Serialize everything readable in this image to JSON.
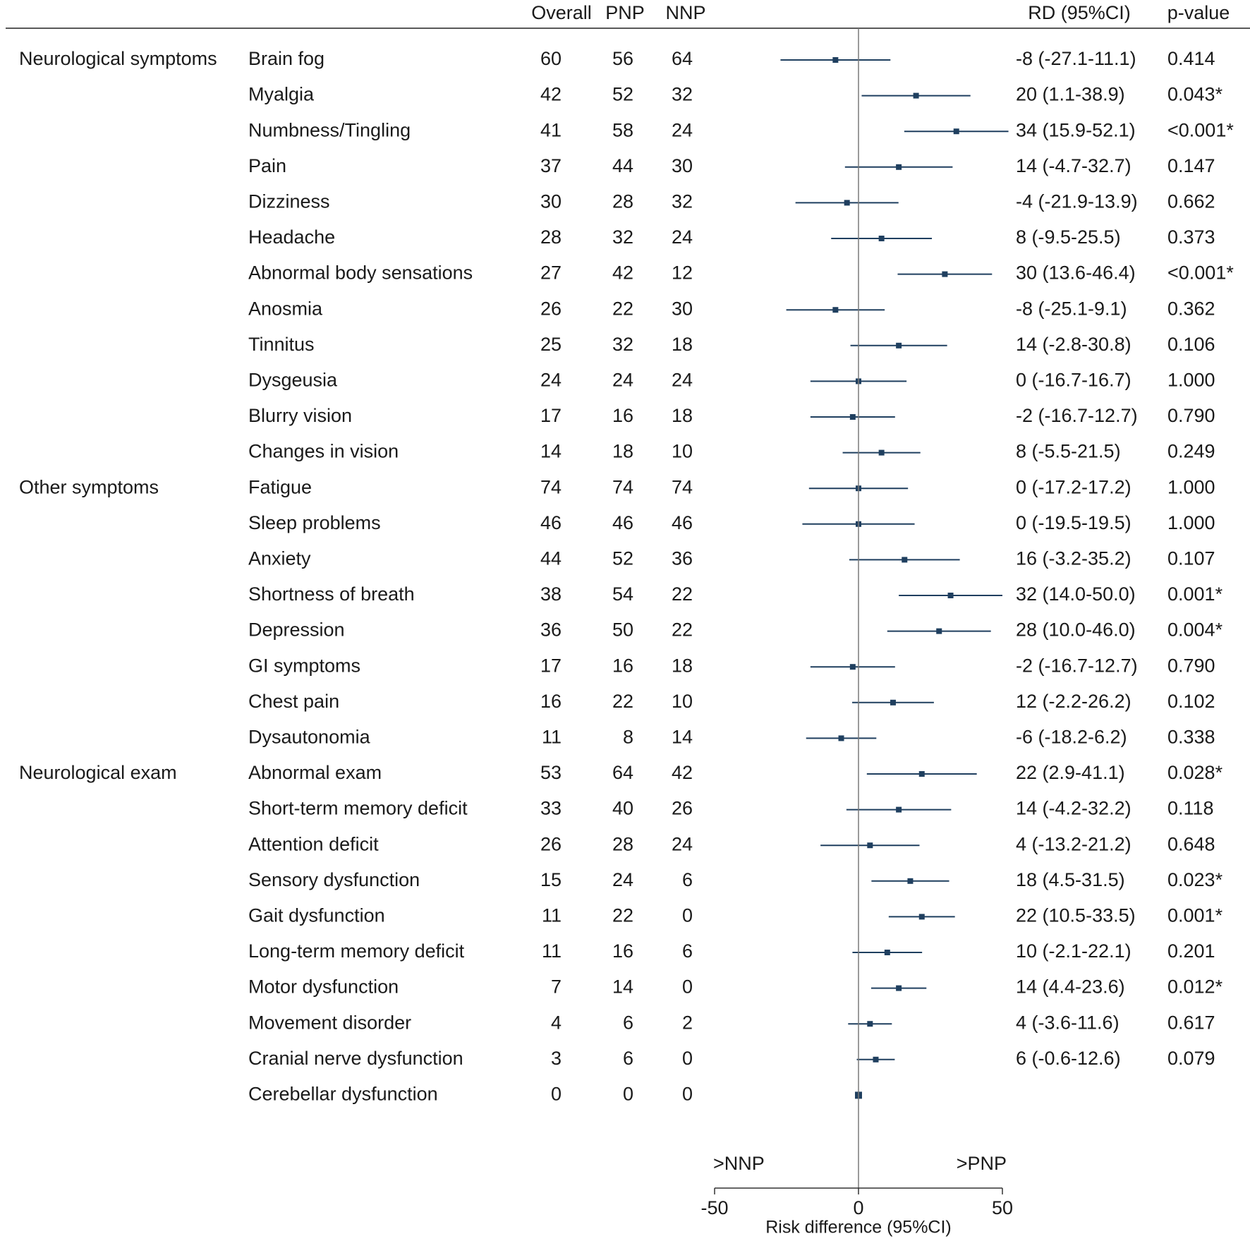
{
  "chart_data": {
    "type": "forest",
    "columns": {
      "overall": "Overall",
      "pnp": "PNP",
      "nnp": "NNP",
      "rd": "RD (95%CI)",
      "pvalue": "p-value"
    },
    "groups": [
      {
        "label": "Neurological symptoms",
        "rows": [
          {
            "name": "Brain fog",
            "overall": "60",
            "pnp": "56",
            "nnp": "64",
            "rd": -8,
            "lo": -27.1,
            "hi": 11.1,
            "rd_text": "-8 (-27.1-11.1)",
            "p": "0.414"
          },
          {
            "name": "Myalgia",
            "overall": "42",
            "pnp": "52",
            "nnp": "32",
            "rd": 20,
            "lo": 1.1,
            "hi": 38.9,
            "rd_text": "20 (1.1-38.9)",
            "p": "0.043*"
          },
          {
            "name": "Numbness/Tingling",
            "overall": "41",
            "pnp": "58",
            "nnp": "24",
            "rd": 34,
            "lo": 15.9,
            "hi": 52.1,
            "rd_text": "34 (15.9-52.1)",
            "p": "<0.001*"
          },
          {
            "name": "Pain",
            "overall": "37",
            "pnp": "44",
            "nnp": "30",
            "rd": 14,
            "lo": -4.7,
            "hi": 32.7,
            "rd_text": "14 (-4.7-32.7)",
            "p": "0.147"
          },
          {
            "name": "Dizziness",
            "overall": "30",
            "pnp": "28",
            "nnp": "32",
            "rd": -4,
            "lo": -21.9,
            "hi": 13.9,
            "rd_text": "-4 (-21.9-13.9)",
            "p": "0.662"
          },
          {
            "name": "Headache",
            "overall": "28",
            "pnp": "32",
            "nnp": "24",
            "rd": 8,
            "lo": -9.5,
            "hi": 25.5,
            "rd_text": "8 (-9.5-25.5)",
            "p": "0.373"
          },
          {
            "name": "Abnormal body sensations",
            "overall": "27",
            "pnp": "42",
            "nnp": "12",
            "rd": 30,
            "lo": 13.6,
            "hi": 46.4,
            "rd_text": "30 (13.6-46.4)",
            "p": "<0.001*"
          },
          {
            "name": "Anosmia",
            "overall": "26",
            "pnp": "22",
            "nnp": "30",
            "rd": -8,
            "lo": -25.1,
            "hi": 9.1,
            "rd_text": "-8 (-25.1-9.1)",
            "p": "0.362"
          },
          {
            "name": "Tinnitus",
            "overall": "25",
            "pnp": "32",
            "nnp": "18",
            "rd": 14,
            "lo": -2.8,
            "hi": 30.8,
            "rd_text": "14 (-2.8-30.8)",
            "p": "0.106"
          },
          {
            "name": "Dysgeusia",
            "overall": "24",
            "pnp": "24",
            "nnp": "24",
            "rd": 0,
            "lo": -16.7,
            "hi": 16.7,
            "rd_text": "0 (-16.7-16.7)",
            "p": "1.000"
          },
          {
            "name": "Blurry vision",
            "overall": "17",
            "pnp": "16",
            "nnp": "18",
            "rd": -2,
            "lo": -16.7,
            "hi": 12.7,
            "rd_text": "-2 (-16.7-12.7)",
            "p": "0.790"
          },
          {
            "name": "Changes in vision",
            "overall": "14",
            "pnp": "18",
            "nnp": "10",
            "rd": 8,
            "lo": -5.5,
            "hi": 21.5,
            "rd_text": "8 (-5.5-21.5)",
            "p": "0.249"
          }
        ]
      },
      {
        "label": "Other symptoms",
        "rows": [
          {
            "name": "Fatigue",
            "overall": "74",
            "pnp": "74",
            "nnp": "74",
            "rd": 0,
            "lo": -17.2,
            "hi": 17.2,
            "rd_text": "0 (-17.2-17.2)",
            "p": "1.000"
          },
          {
            "name": "Sleep problems",
            "overall": "46",
            "pnp": "46",
            "nnp": "46",
            "rd": 0,
            "lo": -19.5,
            "hi": 19.5,
            "rd_text": "0  (-19.5-19.5)",
            "p": "1.000"
          },
          {
            "name": "Anxiety",
            "overall": "44",
            "pnp": "52",
            "nnp": "36",
            "rd": 16,
            "lo": -3.2,
            "hi": 35.2,
            "rd_text": "16 (-3.2-35.2)",
            "p": "0.107"
          },
          {
            "name": "Shortness of breath",
            "overall": "38",
            "pnp": "54",
            "nnp": "22",
            "rd": 32,
            "lo": 14.0,
            "hi": 50.0,
            "rd_text": "32 (14.0-50.0)",
            "p": "0.001*"
          },
          {
            "name": "Depression",
            "overall": "36",
            "pnp": "50",
            "nnp": "22",
            "rd": 28,
            "lo": 10.0,
            "hi": 46.0,
            "rd_text": "28 (10.0-46.0)",
            "p": "0.004*"
          },
          {
            "name": "GI symptoms",
            "overall": "17",
            "pnp": "16",
            "nnp": "18",
            "rd": -2,
            "lo": -16.7,
            "hi": 12.7,
            "rd_text": "-2 (-16.7-12.7)",
            "p": "0.790"
          },
          {
            "name": "Chest pain",
            "overall": "16",
            "pnp": "22",
            "nnp": "10",
            "rd": 12,
            "lo": -2.2,
            "hi": 26.2,
            "rd_text": "12 (-2.2-26.2)",
            "p": "0.102"
          },
          {
            "name": "Dysautonomia",
            "overall": "11",
            "pnp": "8",
            "nnp": "14",
            "rd": -6,
            "lo": -18.2,
            "hi": 6.2,
            "rd_text": "-6 (-18.2-6.2)",
            "p": "0.338"
          }
        ]
      },
      {
        "label": "Neurological exam",
        "rows": [
          {
            "name": "Abnormal exam",
            "overall": "53",
            "pnp": "64",
            "nnp": "42",
            "rd": 22,
            "lo": 2.9,
            "hi": 41.1,
            "rd_text": "22 (2.9-41.1)",
            "p": "0.028*"
          },
          {
            "name": "Short-term memory deficit",
            "overall": "33",
            "pnp": "40",
            "nnp": "26",
            "rd": 14,
            "lo": -4.2,
            "hi": 32.2,
            "rd_text": "14 (-4.2-32.2)",
            "p": "0.118"
          },
          {
            "name": "Attention deficit",
            "overall": "26",
            "pnp": "28",
            "nnp": "24",
            "rd": 4,
            "lo": -13.2,
            "hi": 21.2,
            "rd_text": "4 (-13.2-21.2)",
            "p": "0.648"
          },
          {
            "name": "Sensory dysfunction",
            "overall": "15",
            "pnp": "24",
            "nnp": "6",
            "rd": 18,
            "lo": 4.5,
            "hi": 31.5,
            "rd_text": "18 (4.5-31.5)",
            "p": "0.023*"
          },
          {
            "name": "Gait dysfunction",
            "overall": "11",
            "pnp": "22",
            "nnp": "0",
            "rd": 22,
            "lo": 10.5,
            "hi": 33.5,
            "rd_text": "22 (10.5-33.5)",
            "p": "0.001*"
          },
          {
            "name": "Long-term memory deficit",
            "overall": "11",
            "pnp": "16",
            "nnp": "6",
            "rd": 10,
            "lo": -2.1,
            "hi": 22.1,
            "rd_text": "10 (-2.1-22.1)",
            "p": "0.201"
          },
          {
            "name": "Motor dysfunction",
            "overall": "7",
            "pnp": "14",
            "nnp": "0",
            "rd": 14,
            "lo": 4.4,
            "hi": 23.6,
            "rd_text": "14 (4.4-23.6)",
            "p": "0.012*"
          },
          {
            "name": "Movement disorder",
            "overall": "4",
            "pnp": "6",
            "nnp": "2",
            "rd": 4,
            "lo": -3.6,
            "hi": 11.6,
            "rd_text": "4 (-3.6-11.6)",
            "p": "0.617"
          },
          {
            "name": "Cranial nerve dysfunction",
            "overall": "3",
            "pnp": "6",
            "nnp": "0",
            "rd": 6,
            "lo": -0.6,
            "hi": 12.6,
            "rd_text": "6 (-0.6-12.6)",
            "p": "0.079"
          },
          {
            "name": "Cerebellar dysfunction",
            "overall": "0",
            "pnp": "0",
            "nnp": "0",
            "rd": 0,
            "lo": 0,
            "hi": 0,
            "rd_text": "",
            "p": ""
          }
        ]
      }
    ],
    "axis": {
      "xlabel": "Risk difference (95%CI)",
      "xlim": [
        -50,
        50
      ],
      "ticks": [
        -50,
        0,
        50
      ],
      "left_label": ">NNP",
      "right_label": ">PNP"
    },
    "colors": {
      "marker": "#1f3f5f",
      "text": "#1a1a1a",
      "axis": "#7a7a7a"
    }
  }
}
